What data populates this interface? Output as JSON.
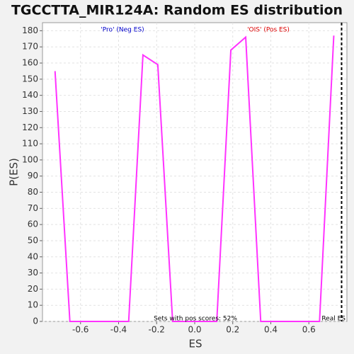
{
  "chart_data": {
    "type": "line",
    "title": "TGCCTTA_MIR124A: Random ES distribution",
    "x_label": "ES",
    "y_label": "P(ES)",
    "x": [
      -0.734,
      -0.656,
      -0.347,
      -0.272,
      -0.194,
      -0.116,
      0.116,
      0.19,
      0.268,
      0.347,
      0.656,
      0.731
    ],
    "series": [
      {
        "color": "#ff33ff",
        "values": [
          155,
          0,
          0,
          165,
          159,
          0,
          0,
          168,
          176,
          0,
          0,
          177
        ]
      }
    ],
    "xlim": [
      -0.8,
      0.8
    ],
    "ylim": [
      0,
      185
    ],
    "xticks": [
      -0.6,
      -0.4,
      -0.2,
      {
        "value": 0,
        "label": "0.0"
      },
      0.2,
      0.4,
      0.6
    ],
    "yticks": [
      0,
      10,
      20,
      30,
      40,
      50,
      60,
      70,
      80,
      90,
      100,
      110,
      120,
      130,
      140,
      150,
      160,
      170,
      180
    ],
    "grid": true,
    "real_es": 0.772,
    "real_es_label": "Real ES",
    "neg_label": "'Pro' (Neg ES)",
    "neg_color": "#0000cc",
    "pos_label": "'OIS' (Pos ES)",
    "pos_color": "#dd0000",
    "pos_scores_note": "Sets with pos scores: 52%"
  }
}
